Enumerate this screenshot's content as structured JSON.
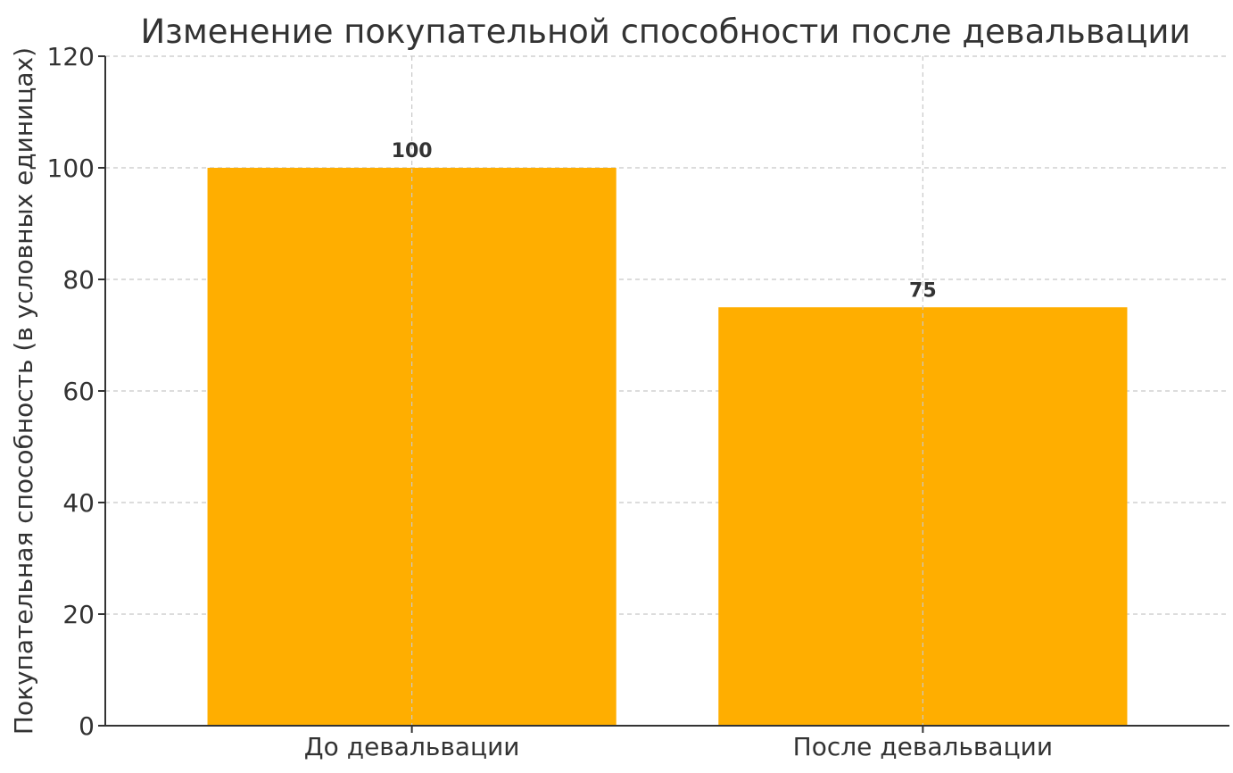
{
  "chart_data": {
    "type": "bar",
    "title": "Изменение покупательной способности после девальвации",
    "xlabel": "",
    "ylabel": "Покупательная способность (в условных единицах)",
    "categories": [
      "До девальвации",
      "После девальвации"
    ],
    "values": [
      100,
      75
    ],
    "data_labels": [
      "100",
      "75"
    ],
    "ylim": [
      0,
      120
    ],
    "yticks": [
      0,
      20,
      40,
      60,
      80,
      100,
      120
    ],
    "grid": true,
    "bar_color": "#FFAE00"
  }
}
